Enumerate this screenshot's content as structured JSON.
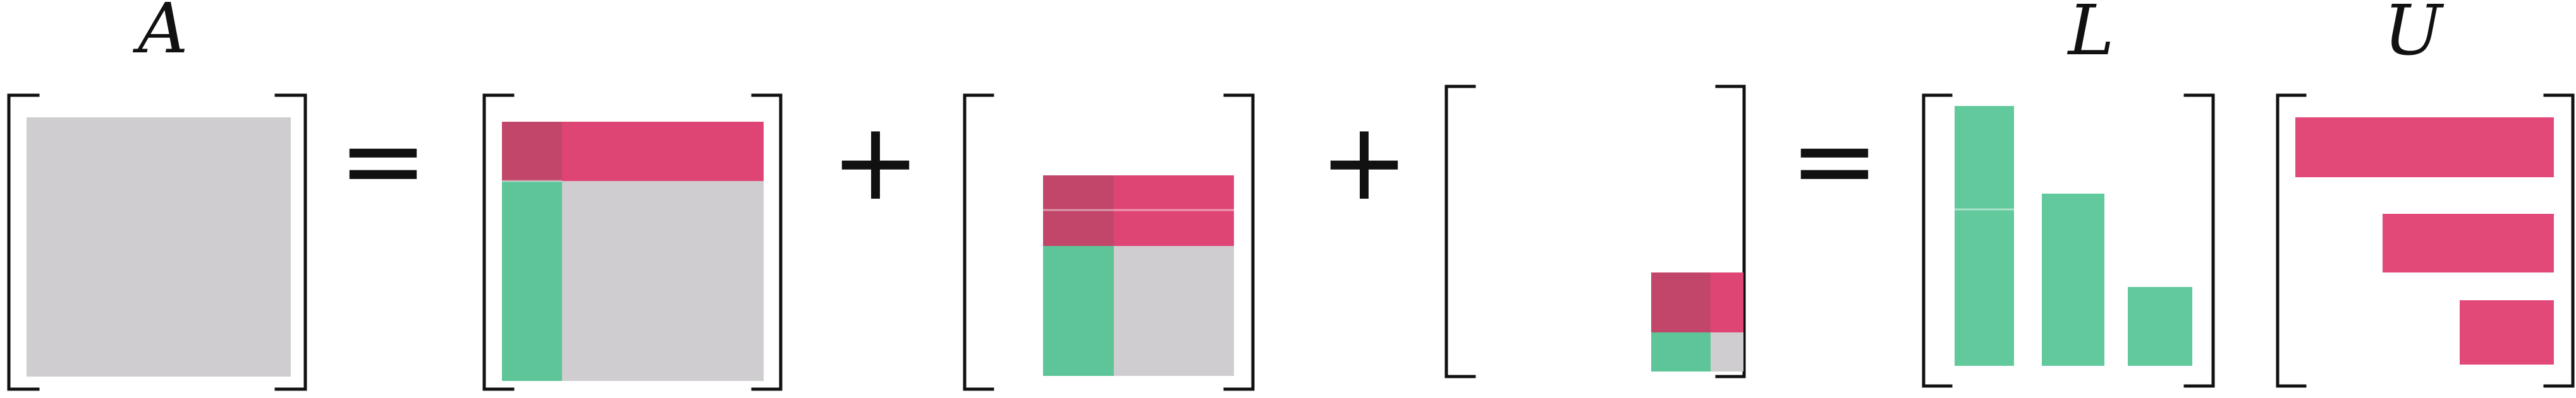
{
  "labels": {
    "a": "A",
    "l": "L",
    "u": "U"
  },
  "operators": {
    "equals_1": "=",
    "plus_1": "+",
    "plus_2": "+",
    "equals_2": "="
  },
  "colors": {
    "background": "#ffffff",
    "bracket": "#111111",
    "gray": "#cfcdcf",
    "red": "#e0396c",
    "green": "#55c495",
    "overlap": "#c63f67"
  }
}
